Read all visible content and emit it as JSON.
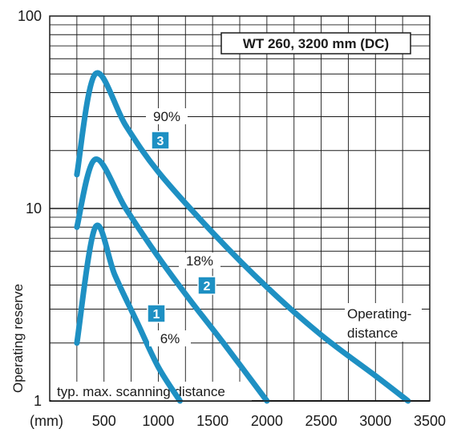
{
  "chart_data": {
    "type": "line",
    "title": "WT 260, 3200 mm (DC)",
    "ylabel": "Operating reserve",
    "x_unit_label": "(mm)",
    "xlim": [
      0,
      3500
    ],
    "ylim": [
      1,
      100
    ],
    "y_scale": "log",
    "x_ticks": [
      "500",
      "1000",
      "1500",
      "2000",
      "2500",
      "3000",
      "3500"
    ],
    "y_ticks": [
      "1",
      "10",
      "100"
    ],
    "series": [
      {
        "badge": "1",
        "reflectance": "6%",
        "color": "#1e90c3",
        "points": [
          [
            250,
            2.0
          ],
          [
            420,
            8.0
          ],
          [
            600,
            4.5
          ],
          [
            800,
            2.6
          ],
          [
            1000,
            1.5
          ],
          [
            1200,
            1.0
          ]
        ]
      },
      {
        "badge": "2",
        "reflectance": "18%",
        "color": "#1e90c3",
        "points": [
          [
            250,
            8.0
          ],
          [
            420,
            18.0
          ],
          [
            700,
            10.0
          ],
          [
            1000,
            5.6
          ],
          [
            1300,
            3.3
          ],
          [
            1600,
            2.0
          ],
          [
            2000,
            1.0
          ]
        ]
      },
      {
        "badge": "3",
        "reflectance": "90%",
        "color": "#1e90c3",
        "points": [
          [
            250,
            15.0
          ],
          [
            420,
            50.0
          ],
          [
            700,
            27.0
          ],
          [
            1000,
            15.5
          ],
          [
            1500,
            7.5
          ],
          [
            2000,
            3.9
          ],
          [
            2500,
            2.2
          ],
          [
            3000,
            1.35
          ],
          [
            3300,
            1.0
          ]
        ]
      }
    ],
    "annotations": {
      "operating_distance": "Operating-\ndistance",
      "scanning_distance": "typ. max. scanning distance"
    }
  }
}
